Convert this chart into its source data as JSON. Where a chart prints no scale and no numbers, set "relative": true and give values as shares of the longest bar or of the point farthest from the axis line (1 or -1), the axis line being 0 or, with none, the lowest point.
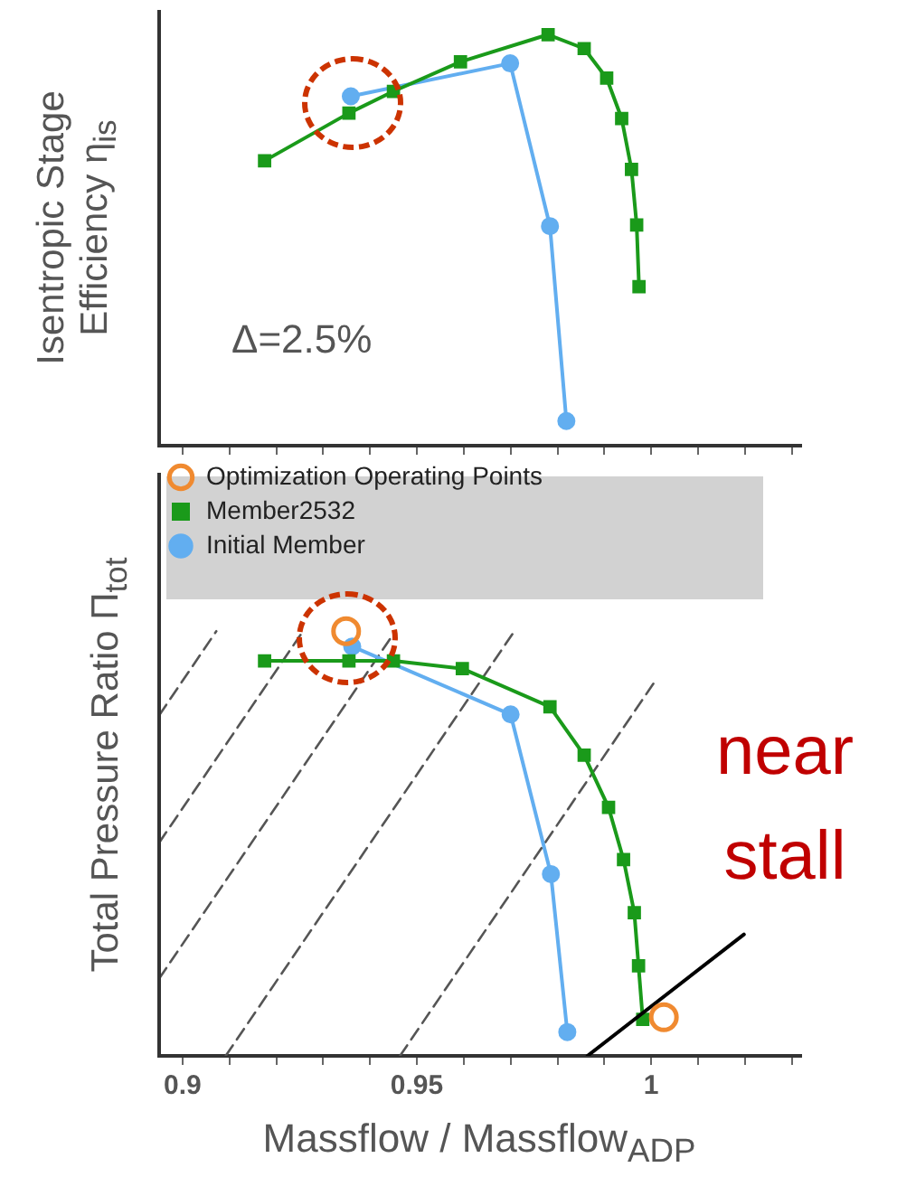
{
  "chart_data": [
    {
      "type": "line",
      "ylabel": "Isentropic Stage Efficiency η$_{is}$",
      "relative": true,
      "xlim": [
        0.895,
        1.032
      ],
      "xticks": [
        0.9,
        {
          "value": 0.91,
          "label": null
        },
        {
          "value": 0.92,
          "label": null
        },
        {
          "value": 0.93,
          "label": null
        },
        {
          "value": 0.94,
          "label": null
        },
        0.95,
        {
          "value": 0.96,
          "label": null
        },
        {
          "value": 0.97,
          "label": null
        },
        {
          "value": 0.98,
          "label": null
        },
        {
          "value": 0.99,
          "label": null
        },
        1,
        {
          "value": 1.01,
          "label": null
        },
        {
          "value": 1.02,
          "label": null
        },
        {
          "value": 1.03,
          "label": null
        }
      ],
      "tick_labels": false,
      "annotations": [
        "Δ=2.5%"
      ],
      "series": [
        {
          "color": "#62aef0",
          "marker": "circle",
          "x": [
            0.9359,
            0.9699,
            0.9784,
            0.9819
          ],
          "values": [
            0.85,
            0.93,
            0.534,
            0.06
          ]
        },
        {
          "color": "#1a9a1a",
          "marker": "square",
          "x": [
            0.9175,
            0.9355,
            0.945,
            0.9593,
            0.978,
            0.9857,
            0.9905,
            0.9937,
            0.9958,
            0.9969,
            0.9974
          ],
          "values": [
            0.693,
            0.809,
            0.862,
            0.934,
            1,
            0.966,
            0.894,
            0.796,
            0.672,
            0.537,
            0.387
          ]
        }
      ]
    },
    {
      "type": "line",
      "xlabel": "Massflow / Massflow$_{ADP}$",
      "ylabel": "Total Pressure Ratio Π$_{tot}$",
      "relative": true,
      "xlim": [
        0.895,
        1.032
      ],
      "xticks": [
        0.9,
        {
          "value": 0.91,
          "label": null
        },
        {
          "value": 0.92,
          "label": null
        },
        {
          "value": 0.93,
          "label": null
        },
        {
          "value": 0.94,
          "label": null
        },
        0.95,
        {
          "value": 0.96,
          "label": null
        },
        {
          "value": 0.97,
          "label": null
        },
        {
          "value": 0.98,
          "label": null
        },
        {
          "value": 0.99,
          "label": null
        },
        1,
        {
          "value": 1.01,
          "label": null
        },
        {
          "value": 1.02,
          "label": null
        },
        {
          "value": 1.03,
          "label": null
        }
      ],
      "tick_labels": "x",
      "legend": "top left",
      "annotations": [
        "near stall"
      ],
      "series": [
        {
          "type": "scatter",
          "name": "Optimization Operating Points",
          "color": "#f08a30",
          "marker": "circle",
          "x": [
            0.9349,
            1.0027
          ],
          "values": [
            1,
            0.091
          ]
        },
        {
          "name": "Initial Member",
          "color": "#62aef0",
          "marker": "circle",
          "x": [
            0.9362,
            0.97,
            0.9786,
            0.9821
          ],
          "values": [
            0.964,
            0.804,
            0.428,
            0.056
          ]
        },
        {
          "name": "Member2532",
          "color": "#1a9a1a",
          "marker": "square",
          "x": [
            0.9175,
            0.9355,
            0.945,
            0.9597,
            0.9784,
            0.9857,
            0.9909,
            0.9941,
            0.9964,
            0.9973,
            0.9982
          ],
          "values": [
            0.93,
            0.93,
            0.93,
            0.912,
            0.822,
            0.708,
            0.585,
            0.462,
            0.337,
            0.212,
            0.086
          ]
        },
        {
          "color": "#000000",
          "marker": "none",
          "line_style": "solid",
          "x": [
            0.9864,
            1.0198
          ],
          "values": [
            0,
            0.286
          ]
        },
        {
          "color": "#555555",
          "marker": "none",
          "line_style": "dashed",
          "x": [
            0.895,
            0.9072
          ],
          "values": [
            0.802,
            1
          ]
        },
        {
          "color": "#555555",
          "marker": "none",
          "line_style": "dashed",
          "x": [
            0.895,
            0.9257
          ],
          "values": [
            0.502,
            1
          ]
        },
        {
          "color": "#555555",
          "marker": "none",
          "line_style": "dashed",
          "x": [
            0.895,
            0.9454
          ],
          "values": [
            0.182,
            1
          ]
        },
        {
          "color": "#555555",
          "marker": "none",
          "line_style": "dashed",
          "x": [
            0.9092,
            0.9708
          ],
          "values": [
            0,
            1
          ]
        },
        {
          "color": "#555555",
          "marker": "none",
          "line_style": "dashed",
          "x": [
            0.9464,
            1.0013
          ],
          "values": [
            0,
            0.89
          ]
        }
      ]
    }
  ]
}
